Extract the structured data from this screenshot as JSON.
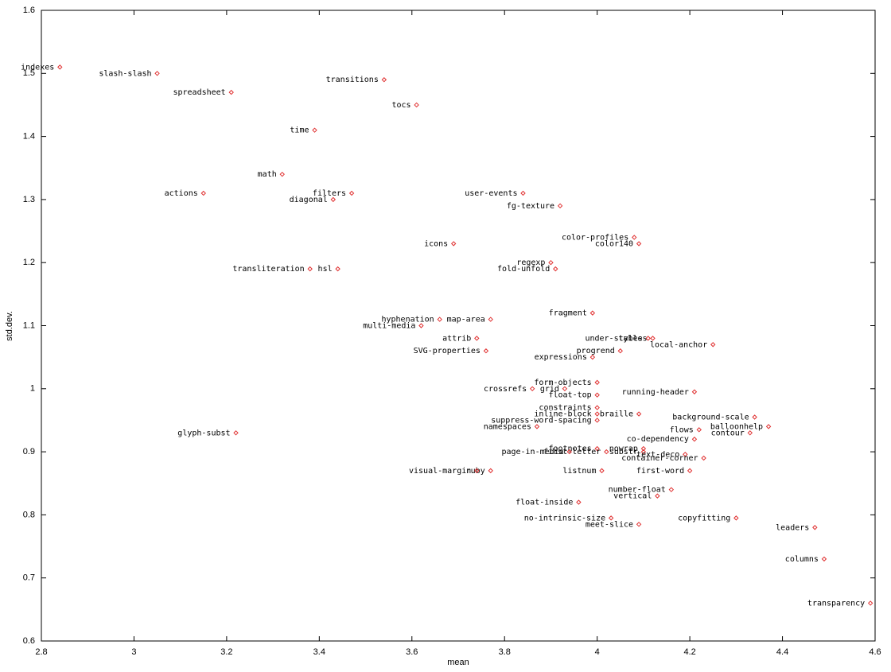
{
  "chart_data": {
    "type": "scatter",
    "xlabel": "mean",
    "ylabel": "std.dev.",
    "xlim": [
      2.8,
      4.6
    ],
    "ylim": [
      0.6,
      1.6
    ],
    "xticks": [
      2.8,
      3,
      3.2,
      3.4,
      3.6,
      3.8,
      4,
      4.2,
      4.4,
      4.6
    ],
    "yticks": [
      0.6,
      0.7,
      0.8,
      0.9,
      1,
      1.1,
      1.2,
      1.3,
      1.4,
      1.5,
      1.6
    ],
    "color": "#e03030",
    "labels": [
      "indexes",
      "slash-slash",
      "spreadsheet",
      "transitions",
      "tocs",
      "time",
      "math",
      "actions",
      "filters",
      "diagonal",
      "user-events",
      "fg-texture",
      "color-profiles",
      "color140",
      "icons",
      "regexp",
      "fold-unfold",
      "transliteration",
      "hsl",
      "fragment",
      "hyphenation",
      "map-area",
      "multi-media",
      "under-styles",
      "tables",
      "local-anchor",
      "attrib",
      "SVG-properties",
      "progrend",
      "expressions",
      "form-objects",
      "crossrefs",
      "grid",
      "running-header",
      "float-top",
      "constraints",
      "inline-block",
      "braille",
      "suppress-word-spacing",
      "background-scale",
      "balloonhelp",
      "namespaces",
      "flows",
      "contour",
      "glyph-subst",
      "co-dependency",
      "footnotes",
      "nowrap",
      "first-letter",
      "page-in-media",
      "substr",
      "text-deco",
      "container-corner",
      "ruby",
      "visual-margin",
      "listnum",
      "first-word",
      "number-float",
      "vertical",
      "float-inside",
      "no-intrinsic-size",
      "copyfitting",
      "meet-slice",
      "leaders",
      "columns",
      "transparency"
    ],
    "x": [
      2.84,
      3.05,
      3.21,
      3.54,
      3.61,
      3.39,
      3.32,
      3.15,
      3.47,
      3.43,
      3.84,
      3.92,
      4.08,
      4.09,
      3.69,
      3.9,
      3.91,
      3.38,
      3.44,
      3.99,
      3.66,
      3.77,
      3.62,
      4.11,
      4.12,
      4.25,
      3.74,
      3.76,
      4.05,
      3.99,
      4.0,
      3.86,
      3.93,
      4.21,
      4.0,
      4.0,
      4.0,
      4.09,
      4.0,
      4.34,
      4.37,
      3.87,
      4.22,
      4.33,
      3.22,
      4.21,
      4.0,
      4.1,
      4.02,
      3.94,
      4.1,
      4.19,
      4.23,
      3.77,
      3.74,
      4.01,
      4.2,
      4.16,
      4.13,
      3.96,
      4.03,
      4.3,
      4.09,
      4.47,
      4.49,
      4.59
    ],
    "values": [
      1.51,
      1.5,
      1.47,
      1.49,
      1.45,
      1.41,
      1.34,
      1.31,
      1.31,
      1.3,
      1.31,
      1.29,
      1.24,
      1.23,
      1.23,
      1.2,
      1.19,
      1.19,
      1.19,
      1.12,
      1.11,
      1.11,
      1.1,
      1.08,
      1.08,
      1.07,
      1.08,
      1.06,
      1.06,
      1.05,
      1.01,
      1.0,
      1.0,
      0.995,
      0.99,
      0.97,
      0.96,
      0.96,
      0.95,
      0.955,
      0.94,
      0.94,
      0.935,
      0.93,
      0.93,
      0.92,
      0.905,
      0.905,
      0.9,
      0.9,
      0.9,
      0.896,
      0.89,
      0.87,
      0.87,
      0.87,
      0.87,
      0.84,
      0.83,
      0.82,
      0.795,
      0.795,
      0.785,
      0.78,
      0.73,
      0.66
    ]
  }
}
